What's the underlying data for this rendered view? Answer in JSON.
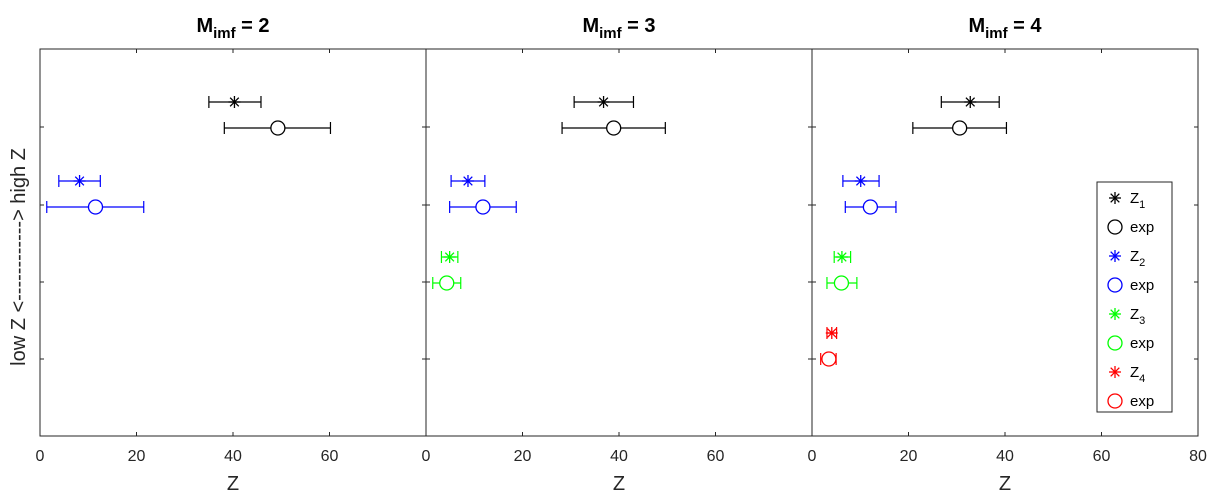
{
  "chart_data": [
    {
      "type": "scatter",
      "title": "M",
      "title_subscript": "imf",
      "title_suffix": " = 2",
      "xlabel": "Z",
      "xlim": [
        0,
        80
      ],
      "xticks": [
        "0",
        "20",
        "40",
        "60"
      ],
      "series": [
        {
          "row": 1,
          "marker": "star",
          "color": "#000000",
          "x": 40.3,
          "xerr": [
            35.0,
            45.8
          ]
        },
        {
          "row": 1,
          "marker": "circle",
          "color": "#000000",
          "x": 49.3,
          "xerr": [
            38.2,
            60.2
          ]
        },
        {
          "row": 2,
          "marker": "star",
          "color": "#0000ff",
          "x": 8.2,
          "xerr": [
            3.9,
            12.5
          ]
        },
        {
          "row": 2,
          "marker": "circle",
          "color": "#0000ff",
          "x": 11.5,
          "xerr": [
            1.4,
            21.5
          ]
        }
      ]
    },
    {
      "type": "scatter",
      "title": "M",
      "title_subscript": "imf",
      "title_suffix": " = 3",
      "xlabel": "Z",
      "xlim": [
        0,
        80
      ],
      "xticks": [
        "0",
        "20",
        "40",
        "60"
      ],
      "series": [
        {
          "row": 1,
          "marker": "star",
          "color": "#000000",
          "x": 36.8,
          "xerr": [
            30.7,
            43.0
          ]
        },
        {
          "row": 1,
          "marker": "circle",
          "color": "#000000",
          "x": 38.9,
          "xerr": [
            28.2,
            49.6
          ]
        },
        {
          "row": 2,
          "marker": "star",
          "color": "#0000ff",
          "x": 8.7,
          "xerr": [
            5.2,
            12.2
          ]
        },
        {
          "row": 2,
          "marker": "circle",
          "color": "#0000ff",
          "x": 11.8,
          "xerr": [
            4.9,
            18.7
          ]
        },
        {
          "row": 3,
          "marker": "star",
          "color": "#00ff00",
          "x": 4.9,
          "xerr": [
            3.2,
            6.6
          ]
        },
        {
          "row": 3,
          "marker": "circle",
          "color": "#00ff00",
          "x": 4.3,
          "xerr": [
            1.4,
            7.2
          ]
        }
      ]
    },
    {
      "type": "scatter",
      "title": "M",
      "title_subscript": "imf",
      "title_suffix": " = 4",
      "xlabel": "Z",
      "xlim": [
        0,
        80
      ],
      "xticks": [
        "0",
        "20",
        "40",
        "60",
        "80"
      ],
      "series": [
        {
          "row": 1,
          "marker": "star",
          "color": "#000000",
          "x": 32.8,
          "xerr": [
            26.8,
            38.8
          ]
        },
        {
          "row": 1,
          "marker": "circle",
          "color": "#000000",
          "x": 30.6,
          "xerr": [
            20.9,
            40.3
          ]
        },
        {
          "row": 2,
          "marker": "star",
          "color": "#0000ff",
          "x": 10.1,
          "xerr": [
            6.4,
            13.9
          ]
        },
        {
          "row": 2,
          "marker": "circle",
          "color": "#0000ff",
          "x": 12.1,
          "xerr": [
            6.9,
            17.4
          ]
        },
        {
          "row": 3,
          "marker": "star",
          "color": "#00ff00",
          "x": 6.2,
          "xerr": [
            4.6,
            8.0
          ]
        },
        {
          "row": 3,
          "marker": "circle",
          "color": "#00ff00",
          "x": 6.1,
          "xerr": [
            3.1,
            9.3
          ]
        },
        {
          "row": 4,
          "marker": "star",
          "color": "#ff0000",
          "x": 4.1,
          "xerr": [
            3.1,
            5.1
          ]
        },
        {
          "row": 4,
          "marker": "circle",
          "color": "#ff0000",
          "x": 3.5,
          "xerr": [
            1.8,
            5.0
          ]
        }
      ]
    }
  ],
  "ylabel": "low Z <------------> high Z",
  "legend": {
    "placement": "right",
    "entries": [
      {
        "label": "Z",
        "sub": "1",
        "marker": "star",
        "color": "#000000"
      },
      {
        "label": "exp",
        "sub": "",
        "marker": "circle",
        "color": "#000000"
      },
      {
        "label": "Z",
        "sub": "2",
        "marker": "star",
        "color": "#0000ff"
      },
      {
        "label": "exp",
        "sub": "",
        "marker": "circle",
        "color": "#0000ff"
      },
      {
        "label": "Z",
        "sub": "3",
        "marker": "star",
        "color": "#00ff00"
      },
      {
        "label": "exp",
        "sub": "",
        "marker": "circle",
        "color": "#00ff00"
      },
      {
        "label": "Z",
        "sub": "4",
        "marker": "star",
        "color": "#ff0000"
      },
      {
        "label": "exp",
        "sub": "",
        "marker": "circle",
        "color": "#ff0000"
      }
    ]
  }
}
